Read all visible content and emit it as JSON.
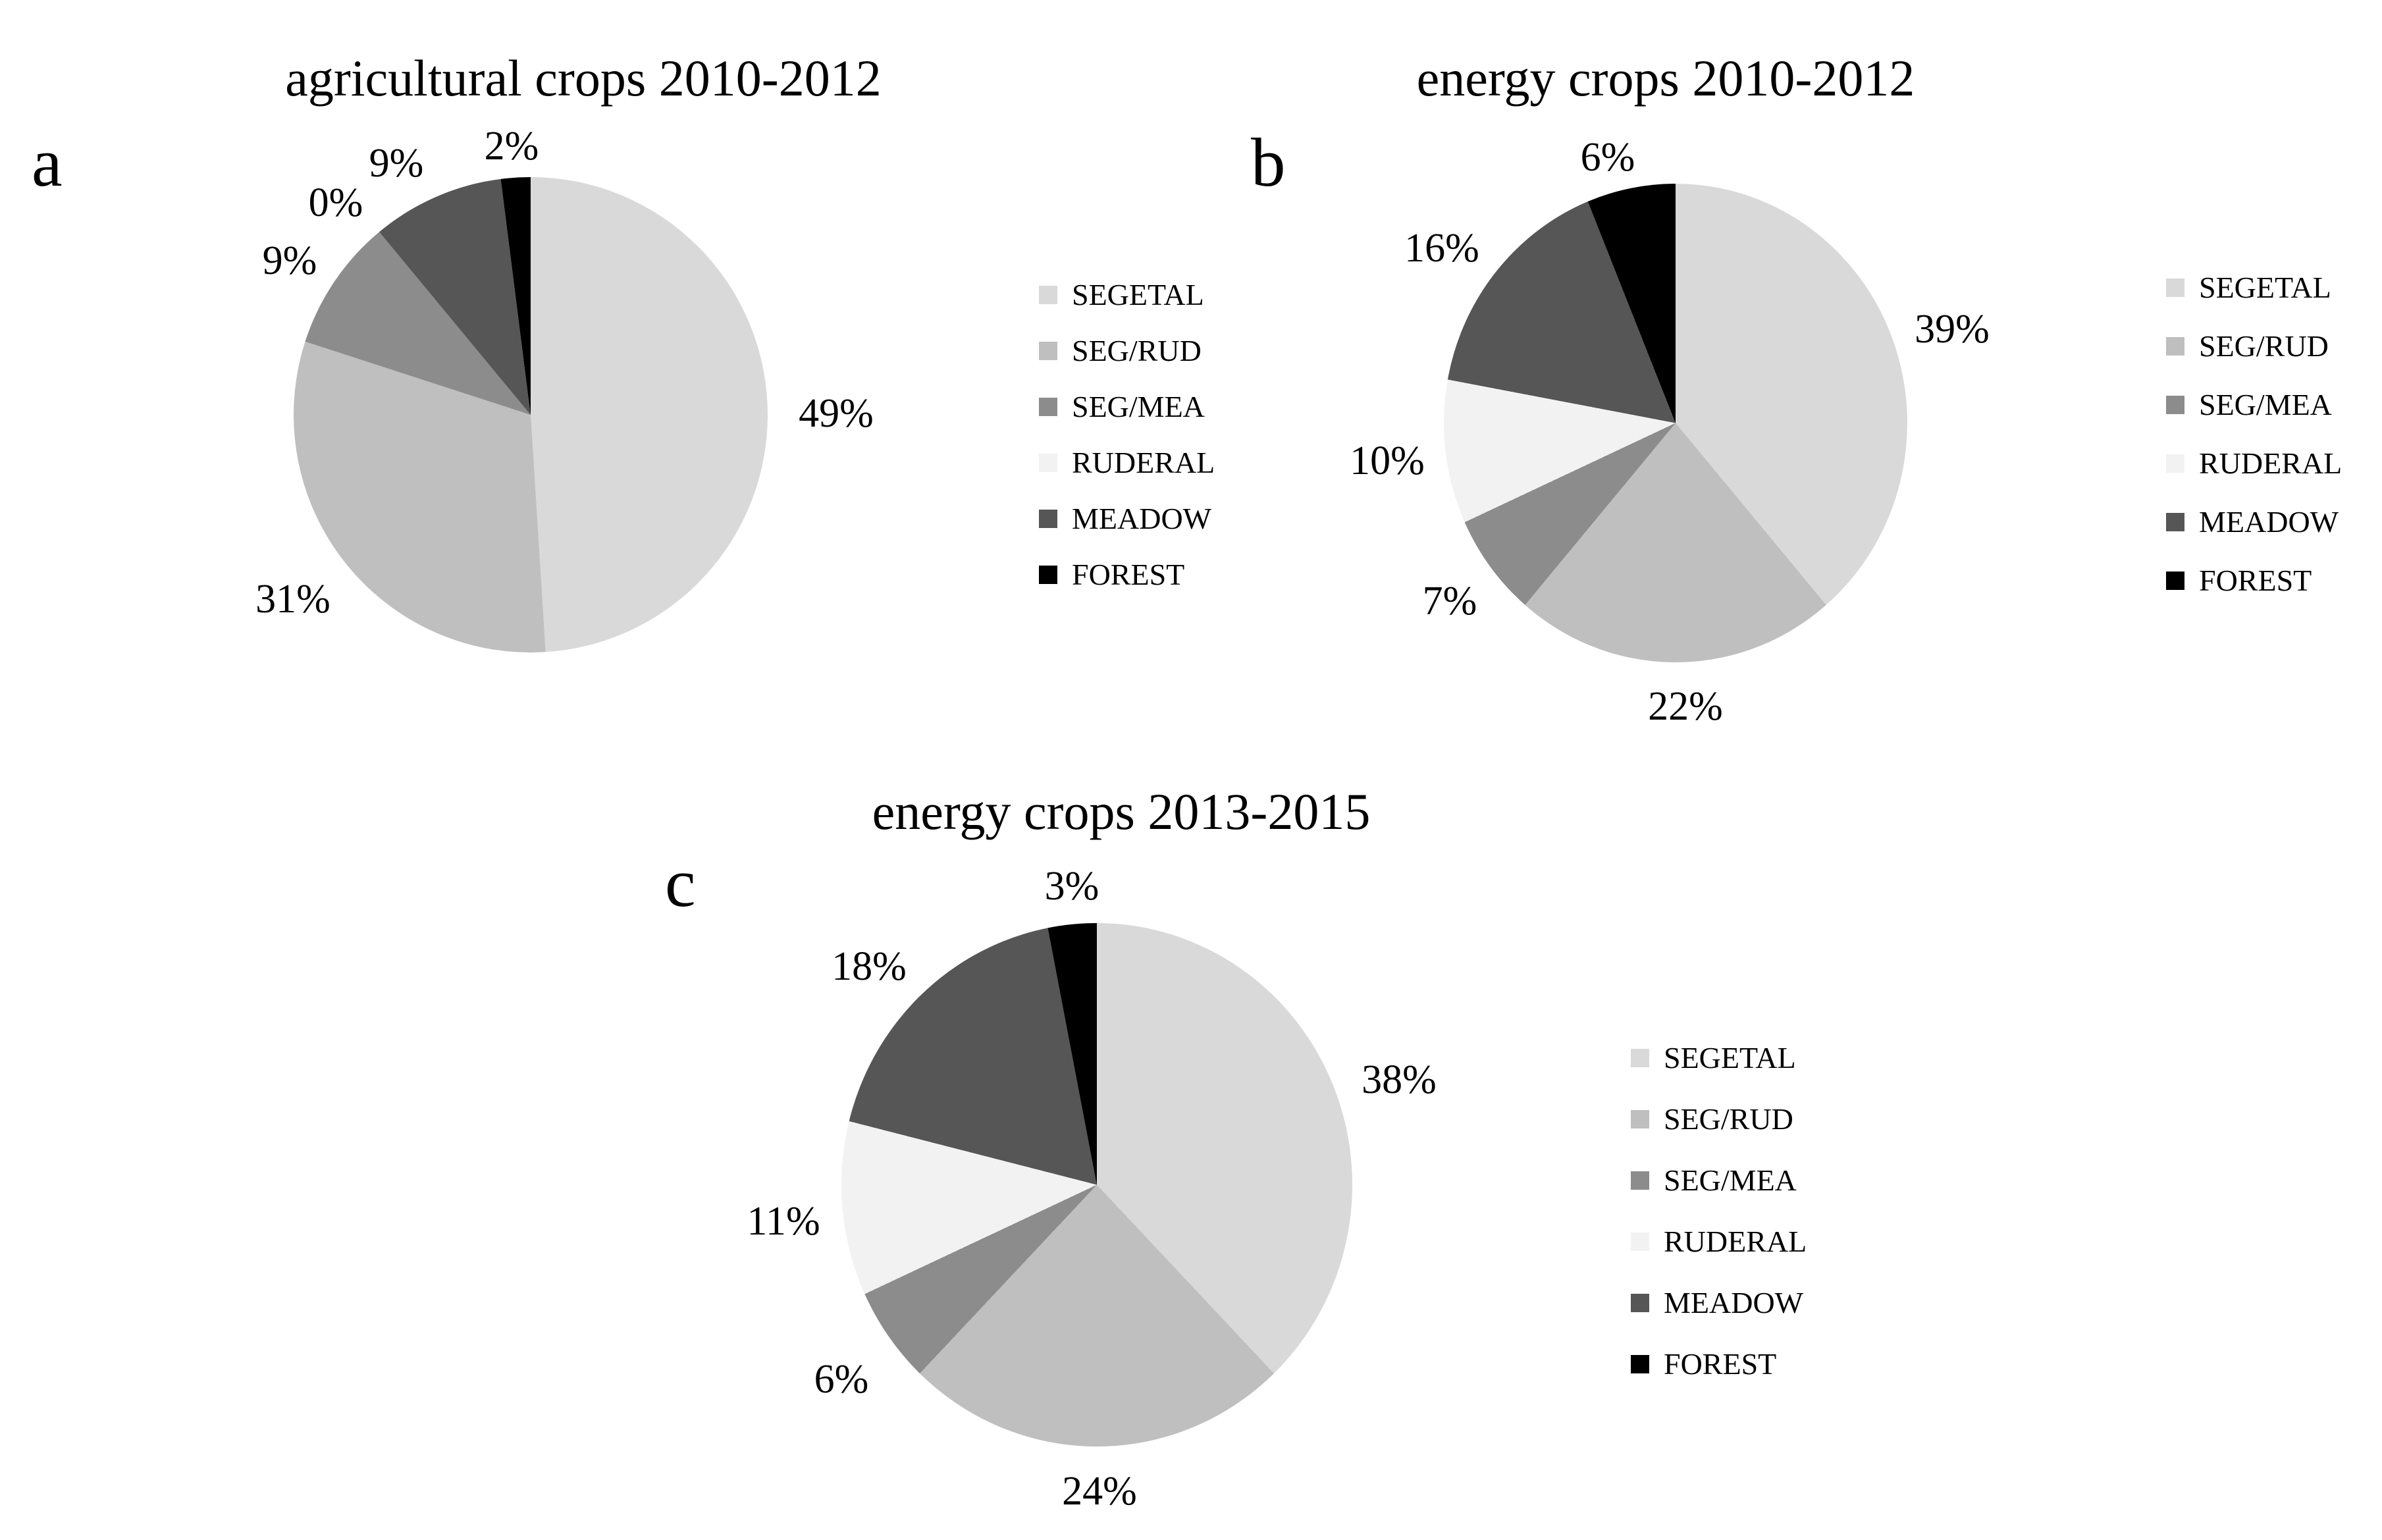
{
  "figure": {
    "background": "#ffffff",
    "text_color": "#000000"
  },
  "chart_data": [
    {
      "type": "pie",
      "panel_letter": "a",
      "title": "agricultural crops 2010-2012",
      "categories": [
        "SEGETAL",
        "SEG/RUD",
        "SEG/MEA",
        "RUDERAL",
        "MEADOW",
        "FOREST"
      ],
      "values": [
        49,
        31,
        9,
        0,
        9,
        2
      ],
      "unit": "%",
      "slice_labels": [
        "49%",
        "31%",
        "9%",
        "0%",
        "9%",
        "2%"
      ],
      "colors": [
        "#d9d9d9",
        "#bfbfbf",
        "#8c8c8c",
        "#f2f2f2",
        "#565656",
        "#000000"
      ],
      "start_angle_deg": 0,
      "direction": "clockwise",
      "legend_position": "right",
      "grid": false
    },
    {
      "type": "pie",
      "panel_letter": "b",
      "title": "energy crops 2010-2012",
      "categories": [
        "SEGETAL",
        "SEG/RUD",
        "SEG/MEA",
        "RUDERAL",
        "MEADOW",
        "FOREST"
      ],
      "values": [
        39,
        22,
        7,
        10,
        16,
        6
      ],
      "unit": "%",
      "slice_labels": [
        "39%",
        "22%",
        "7%",
        "10%",
        "16%",
        "6%"
      ],
      "colors": [
        "#d9d9d9",
        "#bfbfbf",
        "#8c8c8c",
        "#f2f2f2",
        "#565656",
        "#000000"
      ],
      "start_angle_deg": 0,
      "direction": "clockwise",
      "legend_position": "right",
      "grid": false
    },
    {
      "type": "pie",
      "panel_letter": "c",
      "title": "energy crops 2013-2015",
      "categories": [
        "SEGETAL",
        "SEG/RUD",
        "SEG/MEA",
        "RUDERAL",
        "MEADOW",
        "FOREST"
      ],
      "values": [
        38,
        24,
        6,
        11,
        18,
        3
      ],
      "unit": "%",
      "slice_labels": [
        "38%",
        "24%",
        "6%",
        "11%",
        "18%",
        "3%"
      ],
      "colors": [
        "#d9d9d9",
        "#bfbfbf",
        "#8c8c8c",
        "#f2f2f2",
        "#565656",
        "#000000"
      ],
      "start_angle_deg": 0,
      "direction": "clockwise",
      "legend_position": "right",
      "grid": false
    }
  ]
}
